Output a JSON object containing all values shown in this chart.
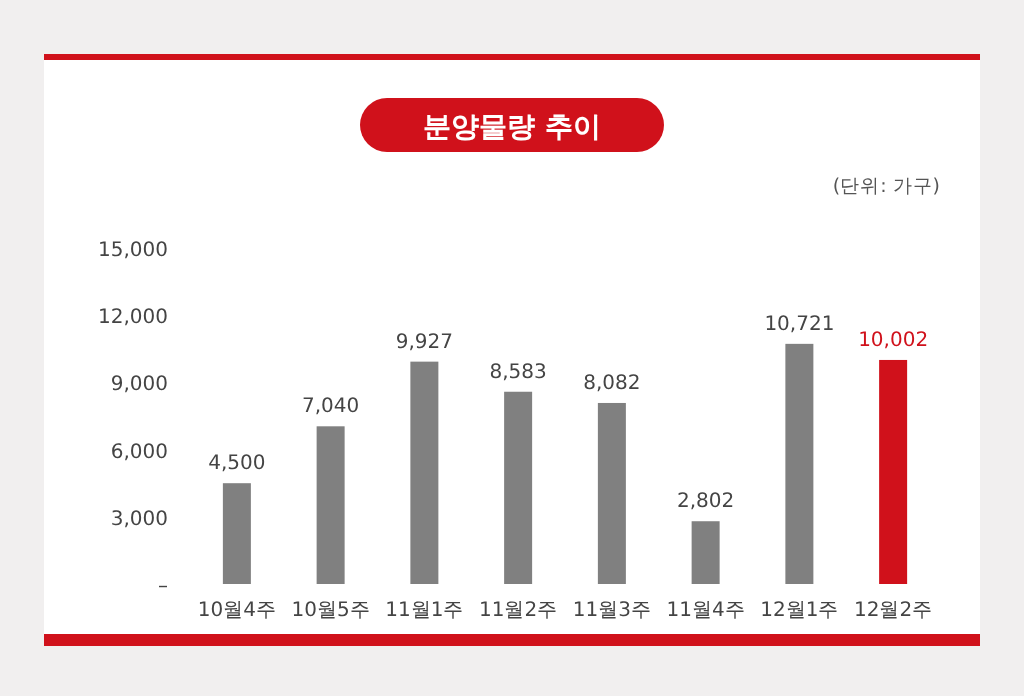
{
  "chart_data": {
    "type": "bar",
    "title": "분양물량 추이",
    "subtitle": "(단위: 가구)",
    "categories": [
      "10월4주",
      "10월5주",
      "11월1주",
      "11월2주",
      "11월3주",
      "11월4주",
      "12월1주",
      "12월2주"
    ],
    "values": [
      4500,
      7040,
      9927,
      8583,
      8082,
      2802,
      10721,
      10002
    ],
    "colors": [
      "#808080",
      "#808080",
      "#808080",
      "#808080",
      "#808080",
      "#808080",
      "#808080",
      "#d0111b"
    ],
    "ylim": [
      0,
      15000
    ],
    "yticks": [
      {
        "value": 0,
        "label": "–"
      },
      {
        "value": 3000,
        "label": "3,000"
      },
      {
        "value": 6000,
        "label": "6,000"
      },
      {
        "value": 9000,
        "label": "9,000"
      },
      {
        "value": 12000,
        "label": "12,000"
      },
      {
        "value": 15000,
        "label": "15,000"
      }
    ],
    "value_labels": [
      "4,500",
      "7,040",
      "9,927",
      "8,583",
      "8,082",
      "2,802",
      "10,721",
      "10,002"
    ]
  }
}
